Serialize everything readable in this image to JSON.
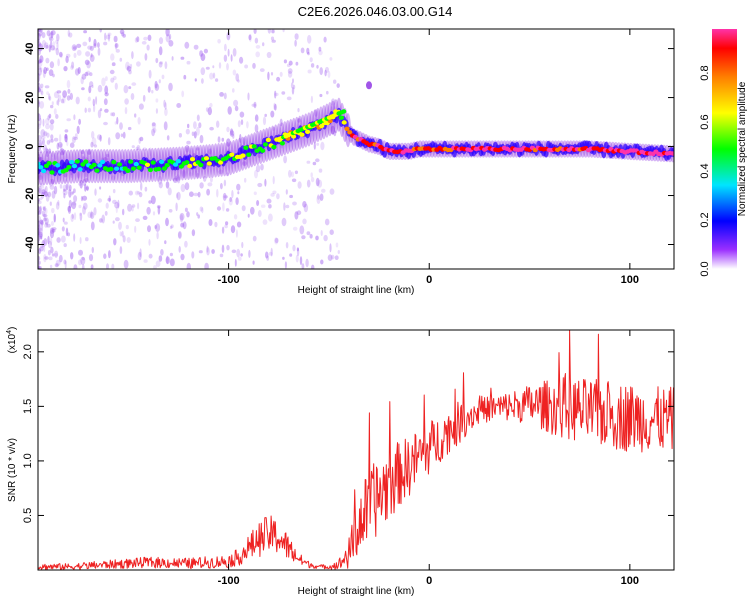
{
  "title": "C2E6.2026.046.03.00.G14",
  "colors": {
    "snr_line": "#ee2222",
    "frame": "#000000"
  },
  "chart_data": [
    {
      "type": "heatmap",
      "xlabel": "Height of straight line (km)",
      "ylabel": "Frequency (Hz)",
      "xlim": [
        -195,
        122
      ],
      "ylim": [
        -50,
        48
      ],
      "xticks": [
        -100,
        0,
        100
      ],
      "xtick_labels": [
        "-100",
        "0",
        "100"
      ],
      "yticks": [
        -40,
        -20,
        0,
        20,
        40
      ],
      "ytick_labels": [
        "-40",
        "-20",
        "0",
        "20",
        "40"
      ],
      "ridge": {
        "x": [
          -195,
          -175,
          -150,
          -125,
          -110,
          -100,
          -90,
          -80,
          -70,
          -60,
          -55,
          -50,
          -45,
          -40,
          -38,
          -35,
          -30,
          -25,
          -20,
          -15,
          -10,
          -5,
          0,
          10,
          20,
          40,
          60,
          80,
          100,
          122
        ],
        "freq": [
          -9,
          -8,
          -8,
          -7,
          -6,
          -5,
          -2,
          1,
          4,
          7,
          9,
          11,
          13,
          6,
          4,
          3,
          1,
          0,
          -2,
          -2,
          -2,
          -1,
          -1,
          -1,
          -1,
          -1,
          -1,
          -1,
          -2,
          -3
        ],
        "amplitude": [
          0.35,
          0.38,
          0.38,
          0.4,
          0.4,
          0.45,
          0.45,
          0.5,
          0.55,
          0.6,
          0.62,
          0.6,
          0.55,
          0.75,
          0.8,
          0.82,
          0.85,
          0.9,
          0.95,
          0.95,
          0.9,
          0.85,
          0.8,
          0.85,
          0.95,
          0.95,
          0.9,
          0.92,
          0.95,
          0.97
        ]
      },
      "colorbar": {
        "label": "Normalized spectral amplitude",
        "range": [
          0,
          0.98
        ],
        "ticks": [
          0.0,
          0.2,
          0.4,
          0.6,
          0.8
        ],
        "tick_labels": [
          "0.0",
          "0.2",
          "0.4",
          "0.6",
          "0.8"
        ]
      }
    },
    {
      "type": "line",
      "xlabel": "Height of straight line (km)",
      "ylabel": "SNR (10 * v/v)",
      "y_multiplier_label": "(x10",
      "y_multiplier_exp": "4",
      "y_multiplier_close": ")",
      "xlim": [
        -195,
        122
      ],
      "ylim": [
        0,
        2.2
      ],
      "xticks": [
        -100,
        0,
        100
      ],
      "xtick_labels": [
        "-100",
        "0",
        "100"
      ],
      "yticks": [
        0.5,
        1.0,
        1.5,
        2.0
      ],
      "ytick_labels": [
        "0.5",
        "1.0",
        "1.5",
        "2.0"
      ],
      "series": [
        {
          "name": "SNR",
          "x": [
            -195,
            -180,
            -160,
            -140,
            -120,
            -100,
            -95,
            -90,
            -85,
            -80,
            -75,
            -70,
            -65,
            -60,
            -55,
            -50,
            -45,
            -40,
            -35,
            -30,
            -25,
            -20,
            -15,
            -10,
            -5,
            0,
            5,
            10,
            15,
            20,
            25,
            30,
            40,
            50,
            60,
            70,
            80,
            90,
            100,
            110,
            122
          ],
          "mean": [
            0.03,
            0.03,
            0.05,
            0.07,
            0.06,
            0.08,
            0.12,
            0.2,
            0.28,
            0.33,
            0.3,
            0.2,
            0.1,
            0.05,
            0.03,
            0.03,
            0.05,
            0.15,
            0.42,
            0.58,
            0.68,
            0.8,
            0.88,
            0.95,
            1.05,
            1.12,
            1.2,
            1.28,
            1.35,
            1.42,
            1.45,
            1.48,
            1.5,
            1.52,
            1.5,
            1.48,
            1.45,
            1.42,
            1.4,
            1.38,
            1.38
          ],
          "noise": [
            0.03,
            0.03,
            0.04,
            0.05,
            0.05,
            0.06,
            0.08,
            0.12,
            0.16,
            0.18,
            0.16,
            0.12,
            0.06,
            0.03,
            0.02,
            0.02,
            0.05,
            0.15,
            0.3,
            0.35,
            0.35,
            0.35,
            0.3,
            0.28,
            0.25,
            0.25,
            0.22,
            0.2,
            0.2,
            0.15,
            0.12,
            0.12,
            0.14,
            0.18,
            0.25,
            0.3,
            0.3,
            0.32,
            0.32,
            0.3,
            0.3
          ]
        }
      ]
    }
  ]
}
